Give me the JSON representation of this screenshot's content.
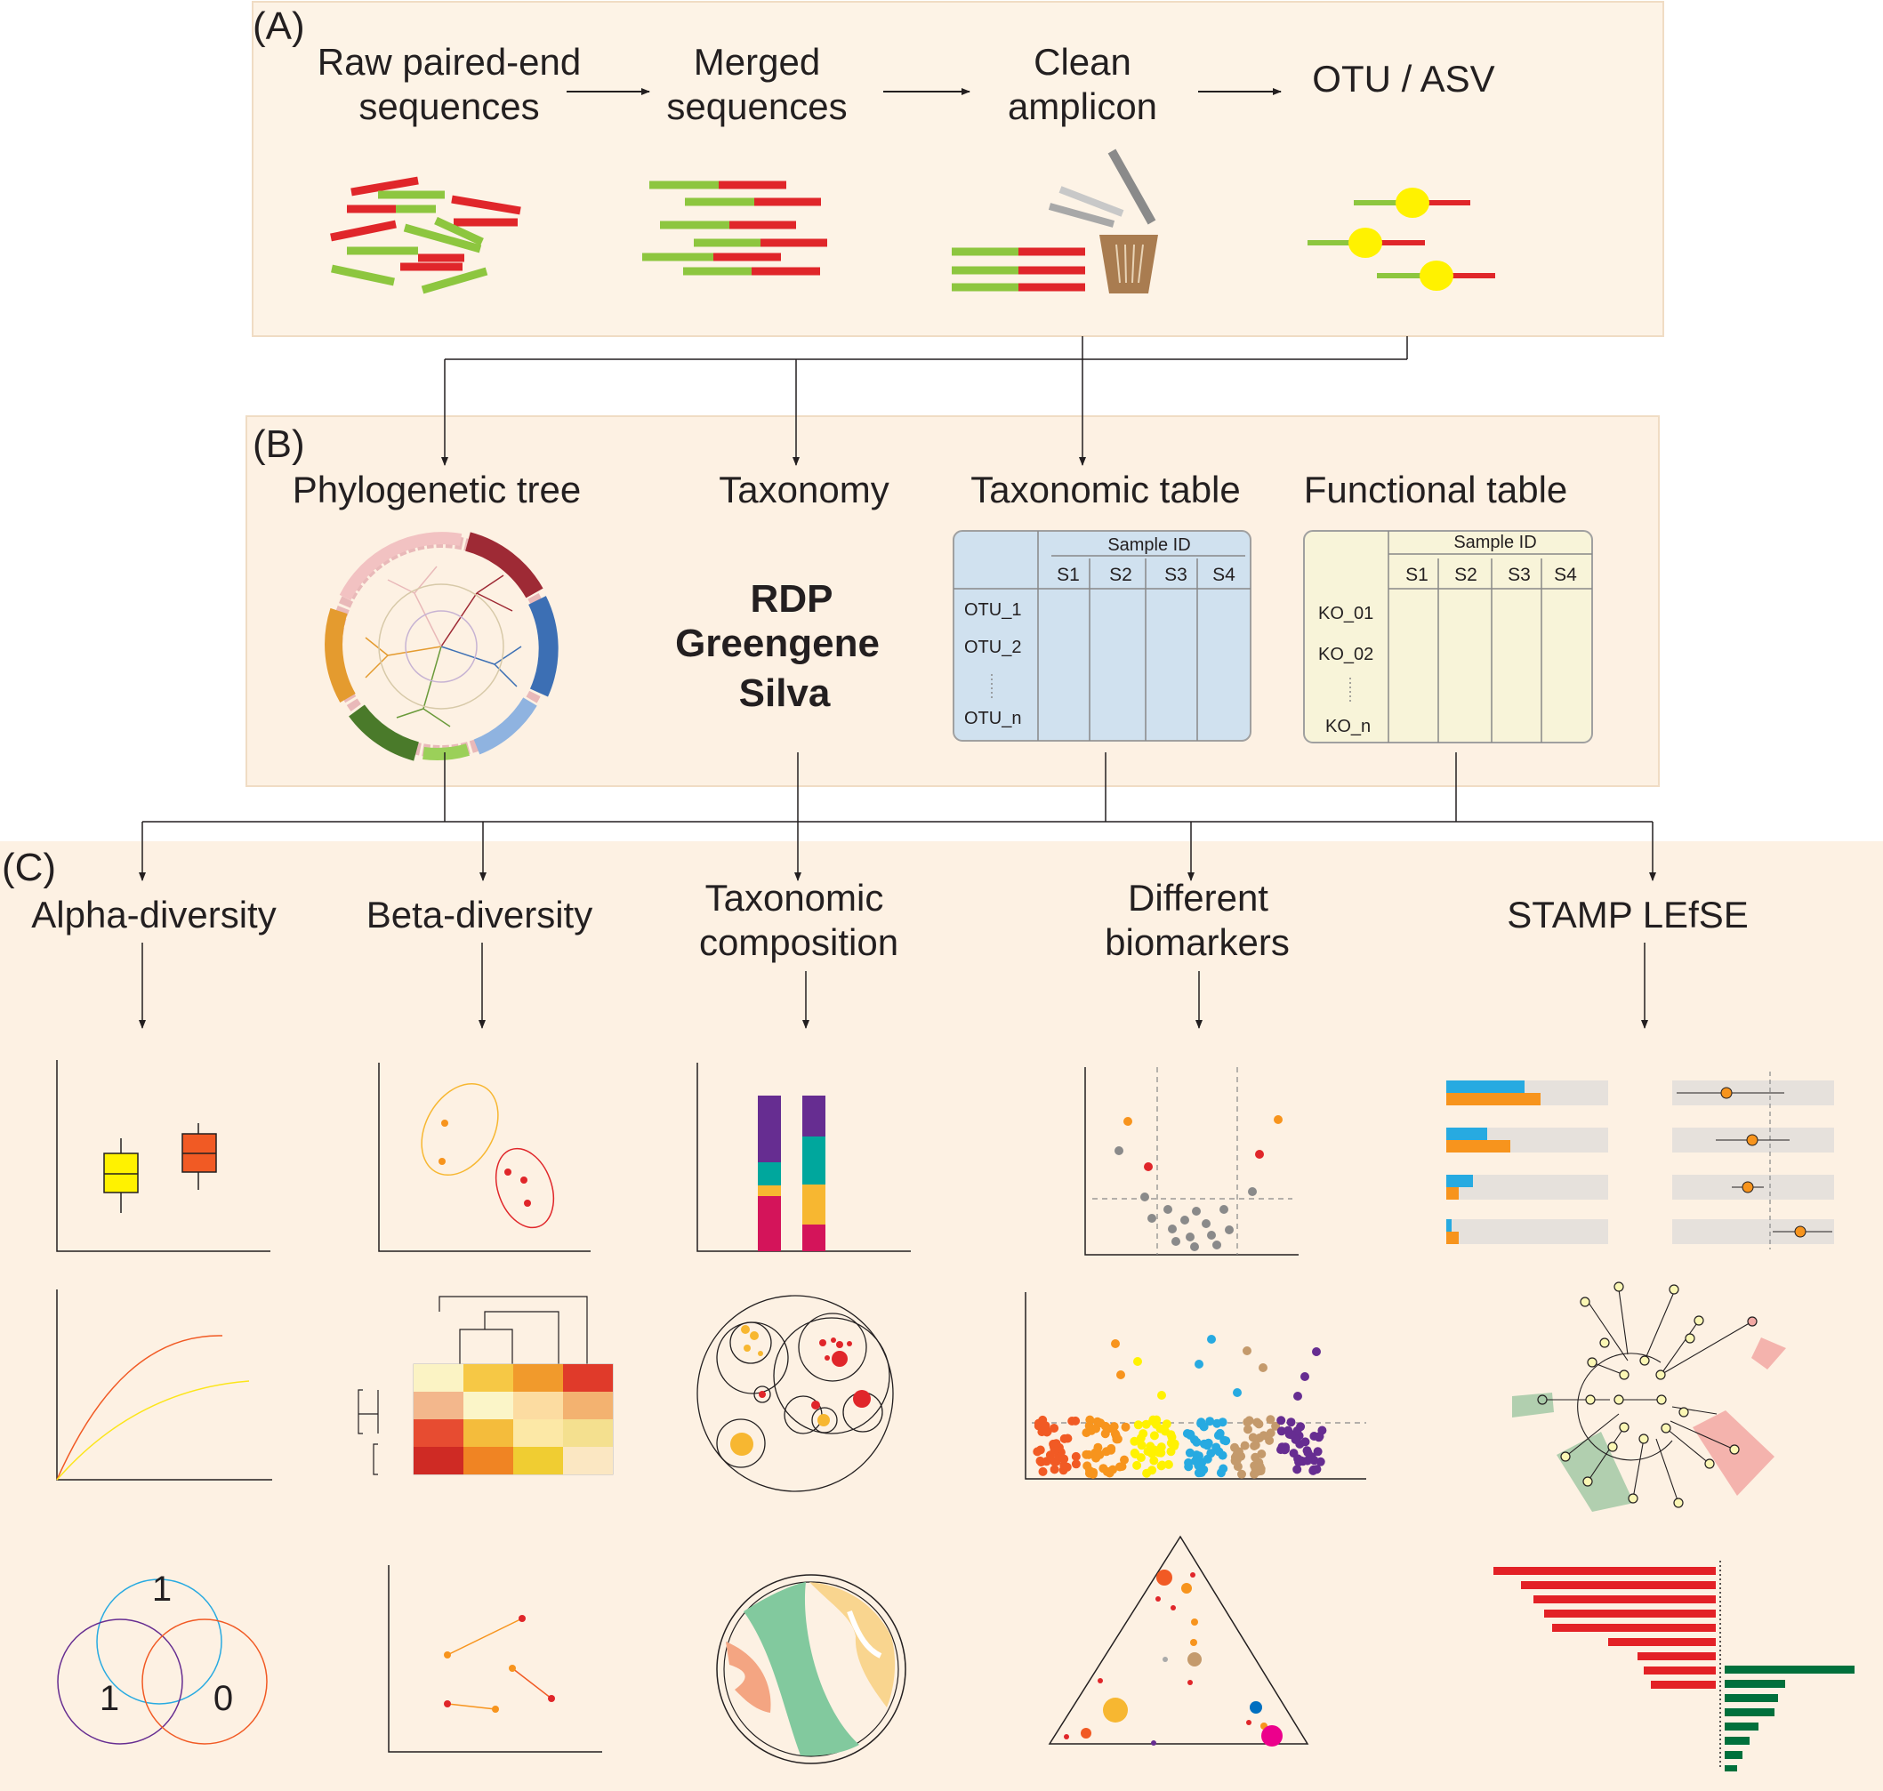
{
  "panels": {
    "a": {
      "label": "(A)",
      "steps": {
        "raw": [
          "Raw paired-end",
          "sequences"
        ],
        "merged": [
          "Merged",
          "sequences"
        ],
        "clean": [
          "Clean",
          "amplicon"
        ],
        "otu": "OTU / ASV"
      }
    },
    "b": {
      "label": "(B)",
      "titles": {
        "tree": "Phylogenetic tree",
        "taxonomy": "Taxonomy",
        "taxtable": "Taxonomic table",
        "functable": "Functional table"
      },
      "databases": [
        "RDP",
        "Greengene",
        "Silva"
      ],
      "taxonomic_table": {
        "header": "Sample ID",
        "columns": [
          "S1",
          "S2",
          "S3",
          "S4"
        ],
        "rows": [
          "OTU_1",
          "OTU_2",
          "OTU_n"
        ]
      },
      "functional_table": {
        "header": "Sample ID",
        "columns": [
          "S1",
          "S2",
          "S3",
          "S4"
        ],
        "rows": [
          "KO_01",
          "KO_02",
          "KO_n"
        ]
      }
    },
    "c": {
      "label": "(C)",
      "titles": {
        "alpha": "Alpha-diversity",
        "beta": "Beta-diversity",
        "taxcomp": [
          "Taxonomic",
          "composition"
        ],
        "biomarkers": [
          "Different",
          "biomarkers"
        ],
        "stamp": "STAMP LEfSE"
      },
      "venn": {
        "top": "1",
        "left": "1",
        "right": "0"
      }
    }
  },
  "colors": {
    "panel_bg": "#fdf1e3",
    "green_read": "#8dc63f",
    "red_read": "#e0262a",
    "otu_yellow": "#fff200",
    "bin_brown": "#a97c50",
    "blue_table": "#d0e1ef",
    "yellow_table": "#f8f4d9",
    "bar_blue": "#27aae1",
    "bar_orange": "#f7941d",
    "lefse_red": "#e32126",
    "lefse_green": "#00703c"
  }
}
